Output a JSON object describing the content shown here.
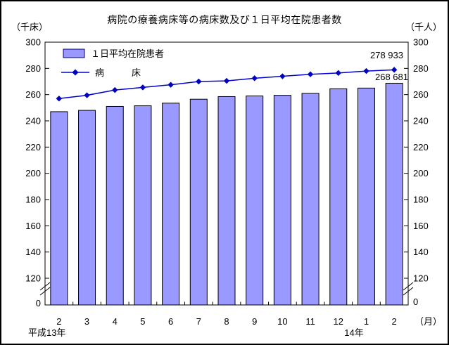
{
  "title": "病院の療養病床等の病床数及び１日平均在院患者数",
  "unit_left": "（千床）",
  "unit_right": "（千人）",
  "legend": {
    "bar_label": "１日平均在院患者",
    "line_label": "病　　　床"
  },
  "annotations": {
    "line_last_value": "278 933",
    "bar_last_value": "268 681"
  },
  "x_axis": {
    "month_unit": "（月）",
    "era_left": "平成13年",
    "era_right": "14年"
  },
  "chart_data": {
    "type": "bar+line",
    "categories": [
      "2",
      "3",
      "4",
      "5",
      "6",
      "7",
      "8",
      "9",
      "10",
      "11",
      "12",
      "1",
      "2"
    ],
    "series": [
      {
        "name": "１日平均在院患者",
        "type": "bar",
        "axis": "right (千人)",
        "values": [
          247,
          248,
          251,
          251.5,
          253.5,
          256.5,
          258.5,
          259,
          259.5,
          261,
          264.5,
          265,
          268.681
        ]
      },
      {
        "name": "病床",
        "type": "line",
        "axis": "left (千床)",
        "values": [
          257,
          259.5,
          263.5,
          265.5,
          267.5,
          270,
          270.5,
          272.5,
          274,
          275.5,
          276.5,
          278,
          278.933
        ]
      }
    ],
    "y_ticks": [
      300,
      280,
      260,
      240,
      220,
      200,
      180,
      160,
      140,
      120
    ],
    "y_zero_label": "0",
    "axis_break": true,
    "ylim_display": [
      120,
      300
    ],
    "grid": false,
    "legend_position": "top-left-inside",
    "colors": {
      "bar_fill": "#9999FF",
      "bar_border": "#000000",
      "line": "#0000D0",
      "marker": "#0000C0",
      "swatch_border": "#000080"
    }
  }
}
